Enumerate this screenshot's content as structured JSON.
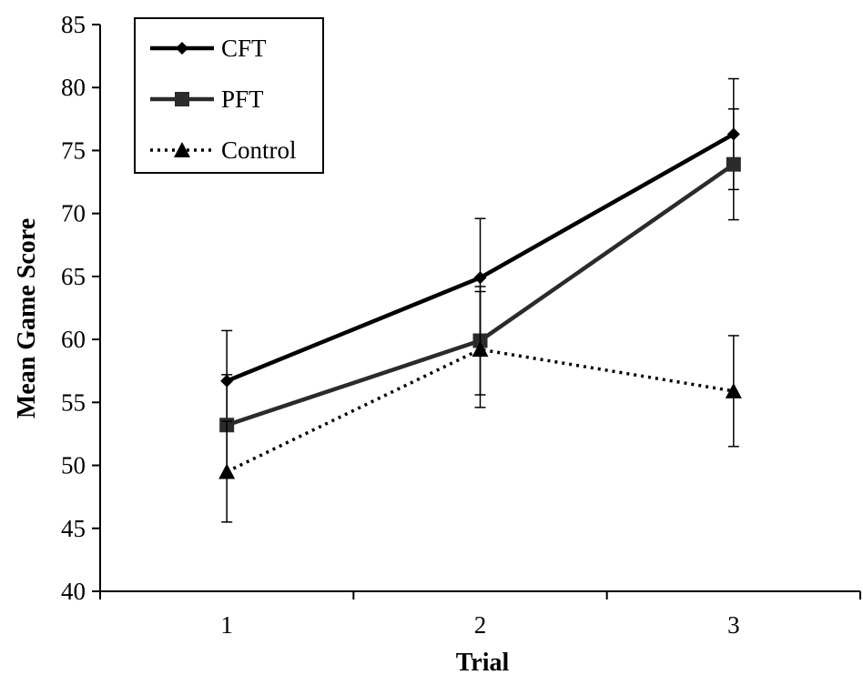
{
  "chart_data": {
    "type": "line",
    "xlabel": "Trial",
    "ylabel": "Mean Game Score",
    "categories": [
      "1",
      "2",
      "3"
    ],
    "ylim": [
      40,
      85
    ],
    "yticks": [
      40,
      45,
      50,
      55,
      60,
      65,
      70,
      75,
      80,
      85
    ],
    "grid": false,
    "legend_position": "top-left",
    "series": [
      {
        "name": "CFT",
        "values": [
          56.7,
          64.9,
          76.3
        ],
        "error": [
          4.0,
          4.7,
          4.4
        ],
        "marker": "diamond",
        "line_style": "solid",
        "color": "#000000"
      },
      {
        "name": "PFT",
        "values": [
          53.2,
          59.9,
          73.9
        ],
        "error": [
          4.0,
          4.3,
          4.4
        ],
        "marker": "square",
        "line_style": "solid",
        "color": "#2b2b2b"
      },
      {
        "name": "Control",
        "values": [
          49.5,
          59.2,
          55.9
        ],
        "error": [
          4.0,
          4.6,
          4.4
        ],
        "marker": "triangle",
        "line_style": "dotted",
        "color": "#000000"
      }
    ]
  }
}
